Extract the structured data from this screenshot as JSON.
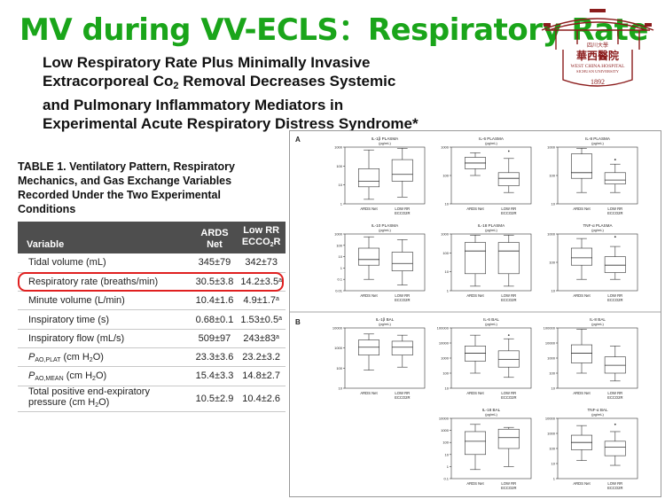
{
  "slide": {
    "title": "MV during VV-ECLS：Respiratory Rate"
  },
  "logo": {
    "text_top": "四川大學",
    "name_cn": "華西醫院",
    "name_en": "WEST CHINA HOSPITAL",
    "name_en2": "SICHUAN UNIVERSITY",
    "year": "1892",
    "color": "#8b1c1c"
  },
  "paper": {
    "title_lines": [
      "Low Respiratory Rate Plus Minimally Invasive",
      "Extracorporeal Co",
      "2",
      " Removal Decreases Systemic",
      "and Pulmonary Inflammatory Mediators in",
      "Experimental Acute Respiratory Distress Syndrome*"
    ]
  },
  "table": {
    "caption_lines": [
      "TABLE 1. Ventilatory Pattern, Respiratory",
      "Mechanics, and Gas Exchange Variables",
      "Recorded Under the Two Experimental",
      "Conditions"
    ],
    "headers": {
      "variable": "Variable",
      "ards_1": "ARDS",
      "ards_2": "Net",
      "low_1": "Low RR",
      "low_2": "ECCO",
      "low_2_sub": "2",
      "low_2_end": "R"
    },
    "rows": [
      {
        "label": "Tidal volume (mL)",
        "ards": "345±79",
        "low": "342±73",
        "sup": ""
      },
      {
        "label": "Respiratory rate (breaths/min)",
        "ards": "30.5±3.8",
        "low": "14.2±3.5",
        "sup": "a"
      },
      {
        "label": "Minute volume (L/min)",
        "ards": "10.4±1.6",
        "low": "4.9±1.7",
        "sup": "a"
      },
      {
        "label": "Inspiratory time (s)",
        "ards": "0.68±0.1",
        "low": "1.53±0.5",
        "sup": "a"
      },
      {
        "label": "Inspiratory flow (mL/s)",
        "ards": "509±97",
        "low": "243±83",
        "sup": "a"
      },
      {
        "label": "P",
        "label_sub": "AO,PLAT",
        "label_end": " (cm H",
        "label_sub2": "2",
        "label_end2": "O)",
        "ards": "23.3±3.6",
        "low": "23.2±3.2",
        "sup": ""
      },
      {
        "label": "P",
        "label_sub": "AO,MEAN",
        "label_end": " (cm H",
        "label_sub2": "2",
        "label_end2": "O)",
        "ards": "15.4±3.3",
        "low": "14.8±2.7",
        "sup": ""
      },
      {
        "label": "Total positive end-expiratory pressure (cm H",
        "label_sub2": "2",
        "label_end2": "O)",
        "ards": "10.5±2.9",
        "low": "10.4±2.6",
        "sup": ""
      }
    ]
  },
  "figure": {
    "panel_a_label": "A",
    "panel_b_label": "B",
    "group_left": "ARDS Net",
    "group_right_1": "LOW RR",
    "group_right_2": "ECCO2R",
    "unit": "(pg/mL)",
    "panels_a": [
      {
        "title": "IL-1β PLASMA",
        "ticks": [
          "1000",
          "100",
          "10",
          "1"
        ]
      },
      {
        "title": "IL-6 PLASMA",
        "ticks": [
          "1000",
          "100",
          "10"
        ]
      },
      {
        "title": "IL-8 PLASMA",
        "ticks": [
          "1000",
          "100",
          "10"
        ]
      },
      {
        "title": "IL-10 PLASMA",
        "ticks": [
          "1000",
          "100",
          "10",
          "1",
          "0.1",
          "0.01"
        ]
      },
      {
        "title": "IL-18 PLASMA",
        "ticks": [
          "1000",
          "100",
          "10",
          "1"
        ]
      },
      {
        "title": "TNF-α PLASMA",
        "ticks": [
          "1000",
          "100",
          "10"
        ]
      }
    ],
    "panels_b": [
      {
        "title": "IL-1β BAL",
        "ticks": [
          "10000",
          "1000",
          "100",
          "10"
        ]
      },
      {
        "title": "IL-6 BAL",
        "ticks": [
          "100000",
          "10000",
          "1000",
          "100",
          "10"
        ]
      },
      {
        "title": "IL-8 BAL",
        "ticks": [
          "100000",
          "10000",
          "1000",
          "100",
          "10"
        ]
      },
      {
        "title": "IL-18 BAL",
        "ticks": [
          "10000",
          "1000",
          "100",
          "10",
          "1",
          "0.1"
        ]
      },
      {
        "title": "TNF-α BAL",
        "ticks": [
          "10000",
          "1000",
          "100",
          "10",
          "1"
        ]
      }
    ]
  }
}
